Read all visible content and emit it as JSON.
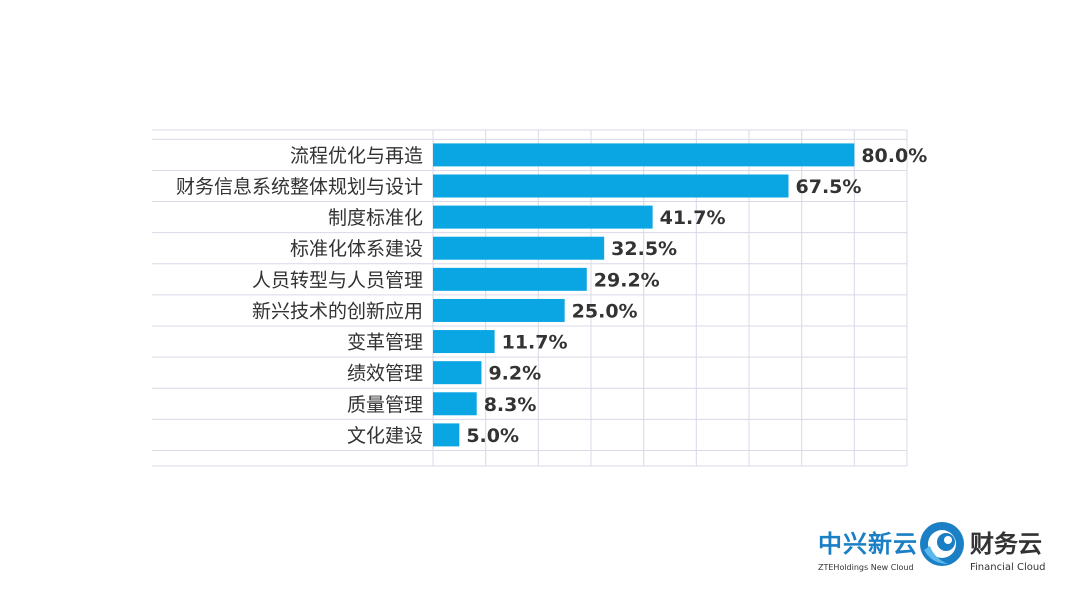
{
  "chart_data": {
    "type": "bar",
    "orientation": "horizontal",
    "categories": [
      "流程优化与再造",
      "财务信息系统整体规划与设计",
      "制度标准化",
      "标准化体系建设",
      "人员转型与人员管理",
      "新兴技术的创新应用",
      "变革管理",
      "绩效管理",
      "质量管理",
      "文化建设"
    ],
    "values": [
      80.0,
      67.5,
      41.7,
      32.5,
      29.2,
      25.0,
      11.7,
      9.2,
      8.3,
      5.0
    ],
    "value_labels": [
      "80.0%",
      "67.5%",
      "41.7%",
      "32.5%",
      "29.2%",
      "25.0%",
      "11.7%",
      "9.2%",
      "8.3%",
      "5.0%"
    ],
    "xlim": [
      0,
      90
    ],
    "grid": true,
    "bar_color": "#0aa6e3",
    "grid_color": "#d9d9e8"
  },
  "logo": {
    "left_cn": "中兴新云",
    "left_en": "ZTEHoldings New Cloud",
    "right_cn": "财务云",
    "right_en": "Financial Cloud",
    "brand_color": "#1a7fc4"
  }
}
